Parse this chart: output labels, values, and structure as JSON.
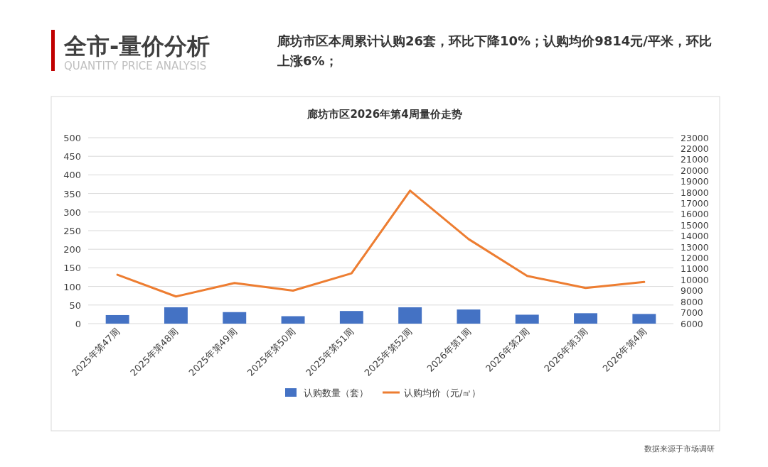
{
  "chart_data": {
    "type": "bar",
    "title": "廊坊市区2026年第4周量价走势",
    "annotations": [
      "全市-量价分析",
      "QUANTITY PRICE ANALYSIS",
      "廊坊市区本周累计认购26套，环比下降10%；认购均价9814元/平米，环比上涨6%；",
      "数据来源于市场调研"
    ],
    "categories": [
      "2025年第47周",
      "2025年第48周",
      "2025年第49周",
      "2025年第50周",
      "2025年第51周",
      "2025年第52周",
      "2026年第1周",
      "2026年第2周",
      "2026年第3周",
      "2026年第4周"
    ],
    "series": [
      {
        "name": "认购数量（套）",
        "color": "#4472c4",
        "values": [
          23,
          44,
          31,
          20,
          34,
          44,
          38,
          24,
          28,
          26
        ]
      },
      {
        "name": "认购均价（元/㎡）",
        "type": "line",
        "axis": "y2",
        "color": "#ed7d31",
        "values": [
          10470,
          8480,
          9710,
          9020,
          10600,
          18160,
          13730,
          10360,
          9260,
          9810
        ]
      }
    ],
    "ylim": [
      0,
      500
    ],
    "yticks": [
      0,
      50,
      100,
      150,
      200,
      250,
      300,
      350,
      400,
      450,
      500
    ],
    "y2lim": [
      6000,
      23000
    ],
    "y2ticks": [
      6000,
      7000,
      8000,
      9000,
      10000,
      11000,
      12000,
      13000,
      14000,
      15000,
      16000,
      17000,
      18000,
      19000,
      20000,
      21000,
      22000,
      23000
    ],
    "grid": "y",
    "legend": "bottom"
  }
}
